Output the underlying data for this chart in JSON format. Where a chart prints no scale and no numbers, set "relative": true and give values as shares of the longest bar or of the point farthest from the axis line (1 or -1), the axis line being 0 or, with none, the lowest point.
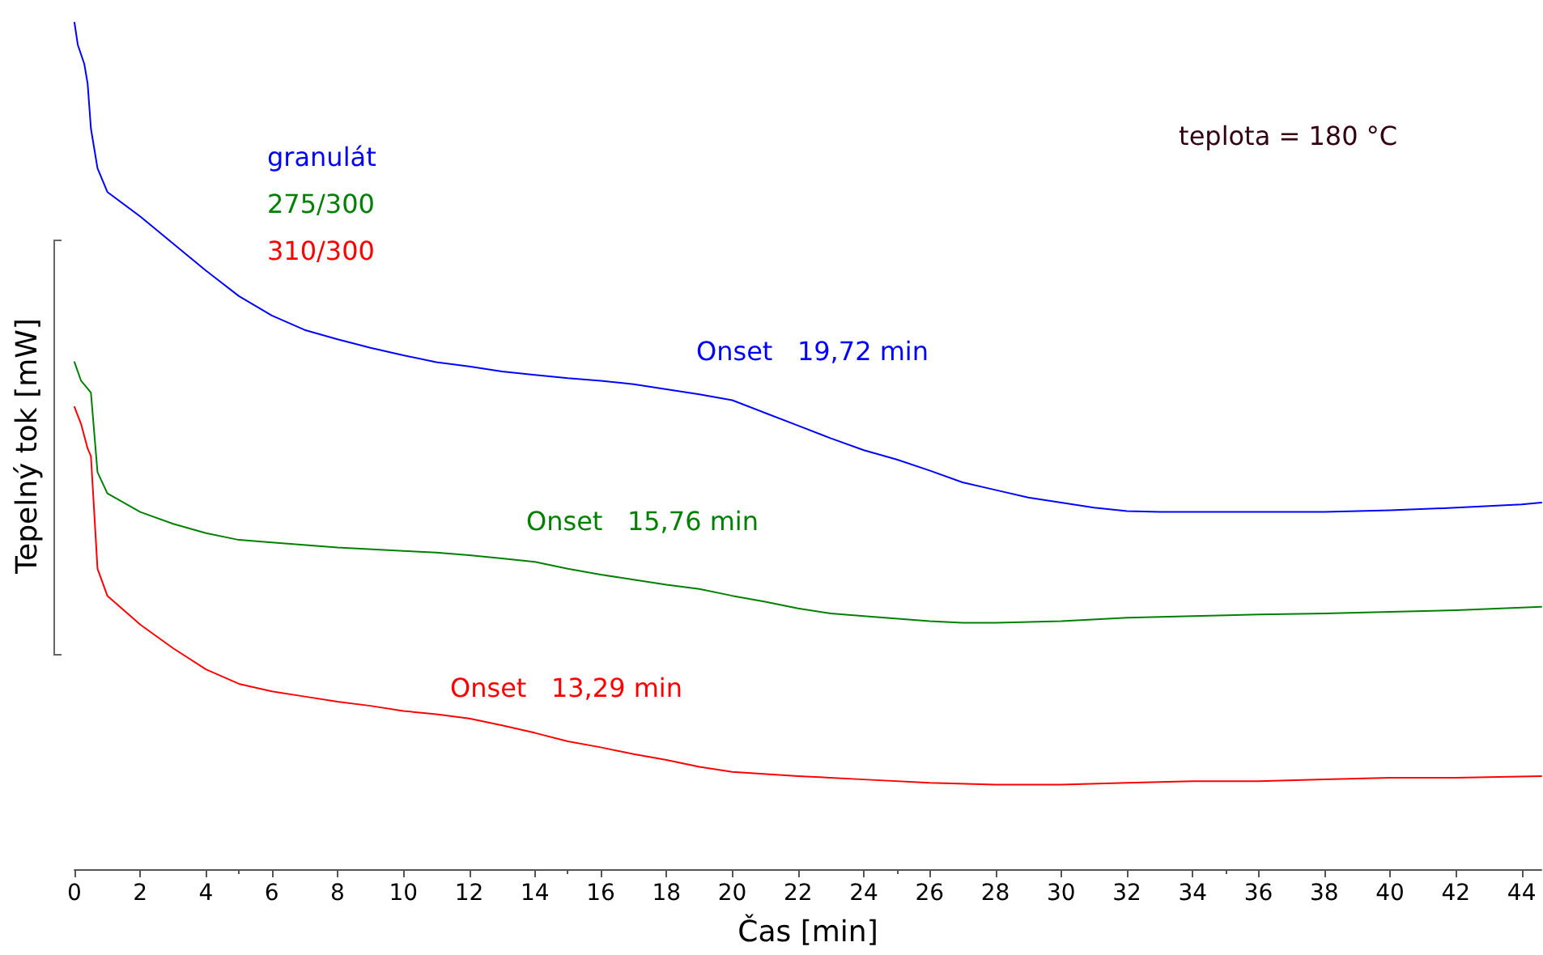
{
  "chart_data": {
    "type": "line",
    "relative": true,
    "xlabel": "Čas [min]",
    "ylabel": "Tepelný tok [mW]",
    "xlim": [
      0,
      44.6
    ],
    "xticks": [
      0,
      2,
      4,
      6,
      8,
      10,
      12,
      14,
      16,
      18,
      20,
      22,
      24,
      26,
      28,
      30,
      32,
      34,
      36,
      38,
      40,
      42,
      44
    ],
    "legend": "top left",
    "grid": false,
    "marker": "none",
    "line_style": "solid",
    "series": [
      {
        "name": "granulát",
        "color": "#0000ff",
        "x": [
          0,
          0.1,
          0.3,
          0.4,
          0.5,
          0.7,
          1,
          2,
          3,
          4,
          5,
          6,
          7,
          8,
          9,
          10,
          11,
          12,
          13,
          14,
          15,
          16,
          17,
          18,
          19,
          20,
          21,
          22,
          23,
          24,
          25,
          26,
          27,
          28,
          29,
          30,
          31,
          32,
          33,
          34,
          36,
          38,
          40,
          42,
          44,
          44.6
        ],
        "values": [
          1.0,
          0.974,
          0.951,
          0.928,
          0.875,
          0.828,
          0.8,
          0.771,
          0.739,
          0.707,
          0.677,
          0.654,
          0.637,
          0.626,
          0.616,
          0.607,
          0.599,
          0.594,
          0.588,
          0.584,
          0.58,
          0.577,
          0.573,
          0.567,
          0.561,
          0.554,
          0.539,
          0.524,
          0.509,
          0.495,
          0.484,
          0.471,
          0.457,
          0.448,
          0.439,
          0.433,
          0.427,
          0.423,
          0.422,
          0.422,
          0.422,
          0.422,
          0.424,
          0.427,
          0.431,
          0.433
        ]
      },
      {
        "name": "275/300",
        "color": "#008000",
        "x": [
          0,
          0.2,
          0.5,
          0.6,
          0.7,
          1,
          2,
          3,
          4,
          5,
          6,
          8,
          10,
          11,
          12,
          13,
          14,
          15,
          16,
          17,
          18,
          19,
          20,
          21,
          22,
          23,
          24,
          26,
          27,
          28,
          30,
          32,
          34,
          36,
          38,
          40,
          42,
          44.6
        ],
        "values": [
          0.599,
          0.577,
          0.563,
          0.516,
          0.469,
          0.444,
          0.422,
          0.408,
          0.397,
          0.389,
          0.386,
          0.38,
          0.376,
          0.374,
          0.371,
          0.367,
          0.363,
          0.355,
          0.348,
          0.342,
          0.336,
          0.331,
          0.323,
          0.316,
          0.308,
          0.302,
          0.299,
          0.293,
          0.291,
          0.291,
          0.293,
          0.297,
          0.299,
          0.301,
          0.302,
          0.304,
          0.306,
          0.31
        ]
      },
      {
        "name": "310/300",
        "color": "#ff0000",
        "x": [
          0,
          0.2,
          0.4,
          0.5,
          0.6,
          0.7,
          1,
          2,
          3,
          4,
          5,
          6,
          7,
          8,
          9,
          10,
          11,
          12,
          13,
          14,
          15,
          16,
          17,
          18,
          19,
          20,
          22,
          24,
          26,
          28,
          30,
          32,
          34,
          36,
          38,
          40,
          42,
          44.6
        ],
        "values": [
          0.546,
          0.526,
          0.497,
          0.488,
          0.422,
          0.355,
          0.323,
          0.289,
          0.261,
          0.236,
          0.219,
          0.21,
          0.204,
          0.198,
          0.193,
          0.187,
          0.183,
          0.178,
          0.17,
          0.161,
          0.151,
          0.144,
          0.136,
          0.129,
          0.121,
          0.115,
          0.11,
          0.106,
          0.102,
          0.1,
          0.1,
          0.102,
          0.104,
          0.104,
          0.106,
          0.108,
          0.108,
          0.11
        ]
      }
    ],
    "annotations": [
      "Onset   19,72 min",
      "Onset   15,76 min",
      "Onset   13,29 min",
      "teplota = 180 °C"
    ]
  }
}
